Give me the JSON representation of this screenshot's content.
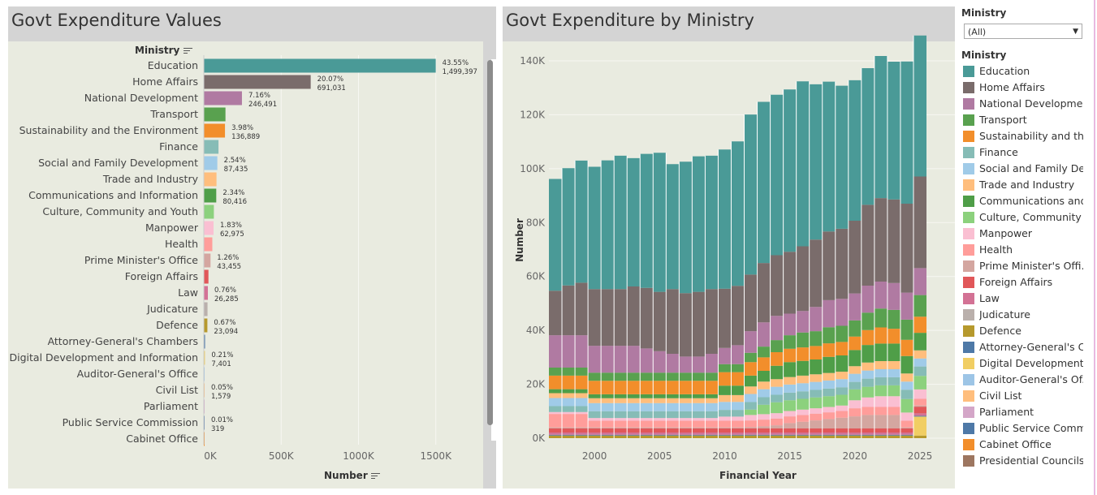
{
  "bar_chart": {
    "title": "Govt Expenditure Values",
    "axis_header": "Ministry",
    "x_axis_title": "Number",
    "sort_icon": "sort-descending-icon"
  },
  "area_chart": {
    "title": "Govt Expenditure by Ministry",
    "x_axis_title": "Financial Year",
    "y_axis_title": "Number"
  },
  "filter": {
    "title": "Ministry",
    "value": "(All)",
    "dropdown_icon": "chevron-down-icon"
  },
  "legend": {
    "title": "Ministry",
    "items": [
      {
        "label": "Education",
        "color": "#4a9a97"
      },
      {
        "label": "Home Affairs",
        "color": "#7a6c6b"
      },
      {
        "label": "National Developme..",
        "color": "#b07aa2"
      },
      {
        "label": "Transport",
        "color": "#59a14f"
      },
      {
        "label": "Sustainability and th..",
        "color": "#f28e2b"
      },
      {
        "label": "Finance",
        "color": "#86bcb6"
      },
      {
        "label": "Social and Family De..",
        "color": "#a0cbe8"
      },
      {
        "label": "Trade and Industry",
        "color": "#ffbe7d"
      },
      {
        "label": "Communications and..",
        "color": "#4f9e48"
      },
      {
        "label": "Culture, Community ..",
        "color": "#8cd17d"
      },
      {
        "label": "Manpower",
        "color": "#fabfd2"
      },
      {
        "label": "Health",
        "color": "#ff9d9a"
      },
      {
        "label": "Prime Minister's Offi..",
        "color": "#d4a6a0"
      },
      {
        "label": "Foreign Affairs",
        "color": "#e15759"
      },
      {
        "label": "Law",
        "color": "#d37295"
      },
      {
        "label": "Judicature",
        "color": "#bab0ac"
      },
      {
        "label": "Defence",
        "color": "#b6992d"
      },
      {
        "label": "Attorney-General's C..",
        "color": "#4e79a7"
      },
      {
        "label": "Digital Development ..",
        "color": "#f1ce63"
      },
      {
        "label": "Auditor-General's Of..",
        "color": "#9dc5e6"
      },
      {
        "label": "Civil List",
        "color": "#ffbe7d"
      },
      {
        "label": "Parliament",
        "color": "#d4a6c8"
      },
      {
        "label": "Public Service Comm..",
        "color": "#4e79a7"
      },
      {
        "label": "Cabinet Office",
        "color": "#f28e2b"
      },
      {
        "label": "Presidential Councils",
        "color": "#9d7660"
      }
    ]
  },
  "chart_data": [
    {
      "type": "bar",
      "orientation": "horizontal",
      "title": "Govt Expenditure Values",
      "xlabel": "Number",
      "ylabel": "Ministry",
      "xlim": [
        0,
        1850000
      ],
      "xticks": [
        "0K",
        "500K",
        "1000K",
        "1500K"
      ],
      "xtick_values": [
        0,
        500000,
        1000000,
        1500000
      ],
      "categories": [
        "Education",
        "Home Affairs",
        "National Development",
        "Transport",
        "Sustainability and the Environment",
        "Finance",
        "Social and Family Development",
        "Trade and Industry",
        "Communications and Information",
        "Culture, Community and Youth",
        "Manpower",
        "Health",
        "Prime Minister's Office",
        "Foreign Affairs",
        "Law",
        "Judicature",
        "Defence",
        "Attorney-General's Chambers",
        "Digital Development and Information",
        "Auditor-General's Office",
        "Civil List",
        "Parliament",
        "Public Service Commission",
        "Cabinet Office"
      ],
      "values": [
        1499397,
        691031,
        246491,
        140000,
        136889,
        95000,
        87435,
        82000,
        80416,
        65000,
        62975,
        55000,
        43455,
        30000,
        26285,
        24000,
        23094,
        8000,
        7401,
        3000,
        1579,
        1200,
        319,
        100
      ],
      "colors": [
        "#4a9a97",
        "#7a6c6b",
        "#b07aa2",
        "#59a14f",
        "#f28e2b",
        "#86bcb6",
        "#a0cbe8",
        "#ffbe7d",
        "#4f9e48",
        "#8cd17d",
        "#fabfd2",
        "#ff9d9a",
        "#d4a6a0",
        "#e15759",
        "#d37295",
        "#bab0ac",
        "#b6992d",
        "#4e79a7",
        "#f1ce63",
        "#9dc5e6",
        "#ffbe7d",
        "#d4a6c8",
        "#4e79a7",
        "#f28e2b"
      ],
      "data_labels": [
        {
          "index": 0,
          "pct": "43.55%",
          "value": "1,499,397"
        },
        {
          "index": 1,
          "pct": "20.07%",
          "value": "691,031"
        },
        {
          "index": 2,
          "pct": "7.16%",
          "value": "246,491"
        },
        {
          "index": 4,
          "pct": "3.98%",
          "value": "136,889"
        },
        {
          "index": 6,
          "pct": "2.54%",
          "value": "87,435"
        },
        {
          "index": 8,
          "pct": "2.34%",
          "value": "80,416"
        },
        {
          "index": 10,
          "pct": "1.83%",
          "value": "62,975"
        },
        {
          "index": 12,
          "pct": "1.26%",
          "value": "43,455"
        },
        {
          "index": 14,
          "pct": "0.76%",
          "value": "26,285"
        },
        {
          "index": 16,
          "pct": "0.67%",
          "value": "23,094"
        },
        {
          "index": 18,
          "pct": "0.21%",
          "value": "7,401"
        },
        {
          "index": 20,
          "pct": "0.05%",
          "value": "1,579"
        },
        {
          "index": 22,
          "pct": "0.01%",
          "value": "319"
        }
      ]
    },
    {
      "type": "area",
      "stacked": true,
      "title": "Govt Expenditure by Ministry",
      "xlabel": "Financial Year",
      "ylabel": "Number",
      "xlim": [
        1996.5,
        2025.5
      ],
      "ylim": [
        0,
        146000
      ],
      "xticks": [
        2000,
        2005,
        2010,
        2015,
        2020,
        2025
      ],
      "yticks": [
        0,
        20000,
        40000,
        60000,
        80000,
        100000,
        120000,
        140000
      ],
      "ytick_labels": [
        "0K",
        "20K",
        "40K",
        "60K",
        "80K",
        "100K",
        "120K",
        "140K"
      ],
      "x": [
        1997,
        1998,
        1999,
        2000,
        2001,
        2002,
        2003,
        2004,
        2005,
        2006,
        2007,
        2008,
        2009,
        2010,
        2011,
        2012,
        2013,
        2014,
        2015,
        2016,
        2017,
        2018,
        2019,
        2020,
        2021,
        2022,
        2023,
        2024,
        2025
      ],
      "series": [
        {
          "name": "Defence",
          "color": "#b6992d",
          "values": [
            1000,
            1000,
            1000,
            1000,
            1000,
            1000,
            1000,
            1000,
            1000,
            1000,
            1000,
            1000,
            1000,
            1000,
            1000,
            1000,
            1000,
            1000,
            1000,
            1000,
            1000,
            1000,
            1000,
            1000,
            1000,
            1000,
            1000,
            1000,
            1000
          ]
        },
        {
          "name": "Digital Development and Information",
          "color": "#f1ce63",
          "values": [
            0,
            0,
            0,
            0,
            0,
            0,
            0,
            0,
            0,
            0,
            0,
            0,
            0,
            0,
            0,
            0,
            0,
            0,
            0,
            0,
            0,
            0,
            0,
            0,
            0,
            0,
            0,
            0,
            7000
          ]
        },
        {
          "name": "Public Service Commission",
          "color": "#4e79a7",
          "values": [
            300,
            300,
            300,
            300,
            300,
            300,
            300,
            300,
            300,
            300,
            300,
            300,
            300,
            300,
            300,
            300,
            300,
            300,
            300,
            300,
            300,
            300,
            300,
            300,
            300,
            300,
            300,
            300,
            300
          ]
        },
        {
          "name": "Law",
          "color": "#d37295",
          "values": [
            800,
            800,
            800,
            800,
            800,
            800,
            800,
            800,
            800,
            800,
            800,
            800,
            800,
            800,
            800,
            800,
            800,
            800,
            800,
            800,
            800,
            800,
            800,
            800,
            800,
            800,
            800,
            800,
            900
          ]
        },
        {
          "name": "Foreign Affairs",
          "color": "#e15759",
          "values": [
            1500,
            1500,
            1500,
            1500,
            1500,
            1500,
            1500,
            1500,
            1500,
            1500,
            1500,
            1500,
            1500,
            1500,
            1500,
            1500,
            1500,
            1500,
            1500,
            1500,
            1500,
            1500,
            1500,
            1500,
            1500,
            1500,
            1500,
            1500,
            2500
          ]
        },
        {
          "name": "Prime Minister's Office",
          "color": "#d4a6a0",
          "values": [
            400,
            400,
            400,
            400,
            400,
            400,
            400,
            400,
            400,
            400,
            400,
            400,
            400,
            400,
            400,
            500,
            800,
            1200,
            2000,
            2500,
            3000,
            3500,
            4000,
            4500,
            5000,
            5000,
            5000,
            400,
            400
          ]
        },
        {
          "name": "Health",
          "color": "#ff9d9a",
          "values": [
            5000,
            5000,
            5000,
            2500,
            2500,
            2500,
            2500,
            2500,
            2500,
            2500,
            2500,
            2500,
            2500,
            2500,
            2500,
            2500,
            2500,
            2500,
            2500,
            2500,
            2500,
            2500,
            2500,
            3000,
            3000,
            3000,
            3000,
            2500,
            2500
          ]
        },
        {
          "name": "Manpower",
          "color": "#fabfd2",
          "values": [
            700,
            700,
            700,
            1000,
            1000,
            1000,
            1000,
            1000,
            1000,
            1000,
            1000,
            1000,
            1000,
            1500,
            1500,
            2000,
            2000,
            2000,
            2000,
            2000,
            2000,
            2000,
            2000,
            3000,
            3500,
            4000,
            4000,
            3000,
            3500
          ]
        },
        {
          "name": "Culture, Community and Youth",
          "color": "#8cd17d",
          "values": [
            0,
            0,
            0,
            0,
            0,
            0,
            0,
            0,
            0,
            0,
            0,
            0,
            0,
            0,
            0,
            2000,
            3500,
            4000,
            4000,
            4000,
            4000,
            4000,
            4000,
            4000,
            4000,
            4000,
            4000,
            5000,
            5000
          ]
        },
        {
          "name": "Finance",
          "color": "#86bcb6",
          "values": [
            2200,
            2200,
            2200,
            2500,
            2500,
            2500,
            2500,
            2500,
            2500,
            2500,
            2500,
            2500,
            2500,
            2500,
            2500,
            2800,
            2800,
            2800,
            2800,
            2800,
            2800,
            2800,
            2800,
            2800,
            3000,
            3000,
            3000,
            3500,
            3500
          ]
        },
        {
          "name": "Social and Family Development",
          "color": "#a0cbe8",
          "values": [
            3000,
            3000,
            3000,
            3000,
            3000,
            3000,
            3000,
            3000,
            3000,
            3000,
            3000,
            3000,
            3000,
            3000,
            3000,
            3000,
            3000,
            3000,
            3000,
            3000,
            3000,
            3000,
            3000,
            3000,
            3000,
            3000,
            3000,
            3000,
            3000
          ]
        },
        {
          "name": "Trade and Industry",
          "color": "#ffbe7d",
          "values": [
            1800,
            1800,
            1800,
            1800,
            1800,
            1800,
            1800,
            1800,
            1800,
            1800,
            1800,
            1800,
            1800,
            2500,
            2500,
            2800,
            2800,
            2800,
            2800,
            2800,
            2800,
            2800,
            2800,
            2800,
            3000,
            3000,
            3000,
            3000,
            3000
          ]
        },
        {
          "name": "Communications and Information",
          "color": "#4f9e48",
          "values": [
            1500,
            1500,
            1500,
            1500,
            1500,
            1500,
            1500,
            1500,
            1500,
            1500,
            1500,
            1500,
            1500,
            3500,
            3500,
            4000,
            4000,
            5000,
            5500,
            5500,
            5500,
            6000,
            6000,
            6000,
            6500,
            6500,
            6500,
            6500,
            6500
          ]
        },
        {
          "name": "Sustainability and the Environment",
          "color": "#f28e2b",
          "values": [
            5000,
            5000,
            5000,
            5000,
            5000,
            5000,
            5000,
            5000,
            5000,
            5000,
            5000,
            5000,
            5000,
            5000,
            5000,
            5000,
            5000,
            5000,
            5000,
            5000,
            5000,
            5000,
            5000,
            5000,
            5500,
            6000,
            5500,
            6000,
            6000
          ]
        },
        {
          "name": "Transport",
          "color": "#59a14f",
          "values": [
            3000,
            3000,
            3000,
            3000,
            3000,
            3000,
            3000,
            3000,
            3000,
            3000,
            3000,
            3000,
            3000,
            3000,
            3000,
            3500,
            4000,
            4500,
            5000,
            5500,
            5500,
            6000,
            6000,
            6000,
            6500,
            7000,
            7000,
            7500,
            8000
          ]
        },
        {
          "name": "National Development",
          "color": "#b07aa2",
          "values": [
            12000,
            12000,
            12000,
            10000,
            10000,
            10000,
            10000,
            9000,
            8000,
            7000,
            6000,
            6000,
            7000,
            6000,
            7000,
            8000,
            9000,
            9000,
            8000,
            8000,
            9000,
            10000,
            10000,
            10000,
            10000,
            10000,
            10000,
            10000,
            10000
          ]
        },
        {
          "name": "Home Affairs",
          "color": "#7a6c6b",
          "values": [
            16500,
            18500,
            19500,
            21000,
            21000,
            21000,
            22000,
            22500,
            22000,
            24000,
            23500,
            24000,
            24000,
            22000,
            22000,
            21000,
            22000,
            22500,
            23000,
            24000,
            25000,
            25500,
            26000,
            27000,
            30000,
            31000,
            31000,
            33000,
            34000
          ]
        },
        {
          "name": "Education",
          "color": "#4a9a97",
          "values": [
            41500,
            43500,
            45300,
            45400,
            47800,
            49500,
            47600,
            49700,
            51600,
            46400,
            48800,
            50300,
            49500,
            51600,
            53600,
            59400,
            59800,
            59500,
            60200,
            61200,
            57600,
            55600,
            53100,
            52100,
            50700,
            52700,
            51100,
            52800,
            52300
          ]
        }
      ]
    }
  ]
}
